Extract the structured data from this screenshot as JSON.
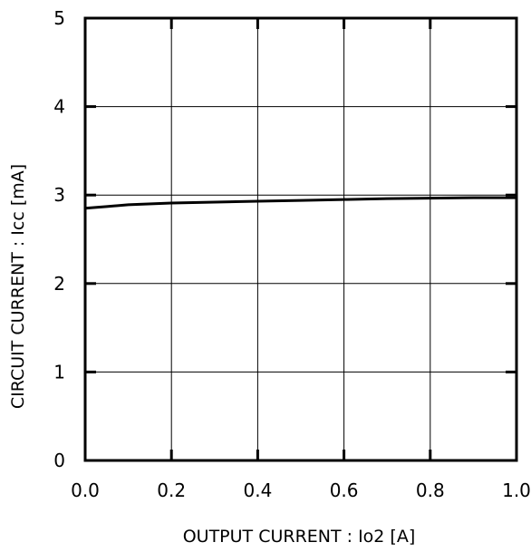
{
  "chart_data": {
    "type": "line",
    "title": "",
    "xlabel": "OUTPUT CURRENT : Io2  [A]",
    "ylabel": "CIRCUIT CURRENT : Icc [mA]",
    "xlim": [
      0.0,
      1.0
    ],
    "ylim": [
      0,
      5
    ],
    "x_ticks": [
      "0.0",
      "0.2",
      "0.4",
      "0.6",
      "0.8",
      "1.0"
    ],
    "y_ticks": [
      "0",
      "1",
      "2",
      "3",
      "4",
      "5"
    ],
    "grid": true,
    "legend": "none",
    "colors": {
      "line": "#000000",
      "grid": "#000000",
      "background": "#ffffff"
    },
    "series": [
      {
        "x": [
          0.0,
          0.05,
          0.1,
          0.2,
          0.3,
          0.4,
          0.5,
          0.6,
          0.7,
          0.8,
          0.9,
          1.0
        ],
        "y": [
          2.85,
          2.87,
          2.89,
          2.91,
          2.92,
          2.93,
          2.94,
          2.95,
          2.96,
          2.965,
          2.97,
          2.97
        ]
      }
    ]
  }
}
